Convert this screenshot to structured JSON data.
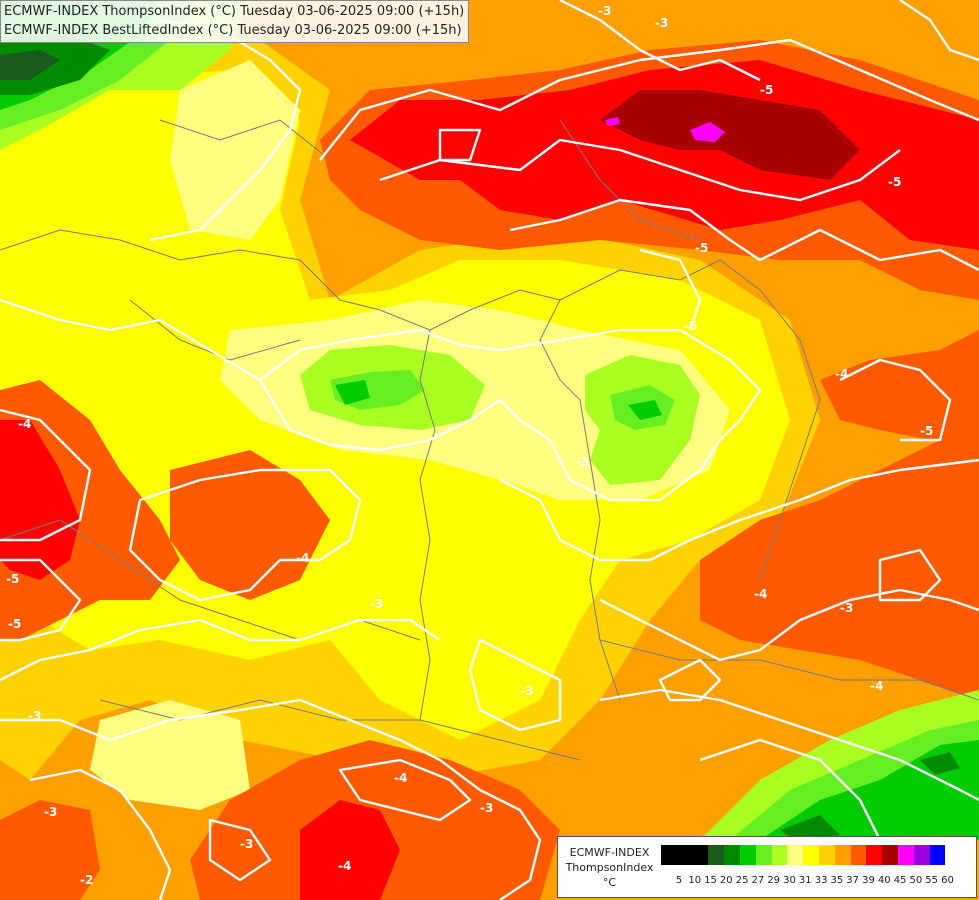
{
  "header": {
    "line1": "ECMWF-INDEX ThompsonIndex (°C) Tuesday 03-06-2025 09:00 (+15h)",
    "line2": "ECMWF-INDEX BestLiftedIndex (°C) Tuesday 03-06-2025 09:00 (+15h)"
  },
  "legend": {
    "model": "ECMWF-INDEX",
    "parameter": "ThompsonIndex",
    "unit": "°C",
    "bins": [
      {
        "label": "5",
        "color": "#000000"
      },
      {
        "label": "10",
        "color": "#000000"
      },
      {
        "label": "15",
        "color": "#000000"
      },
      {
        "label": "20",
        "color": "#1a5a1a"
      },
      {
        "label": "25",
        "color": "#008a00"
      },
      {
        "label": "27",
        "color": "#00cc00"
      },
      {
        "label": "29",
        "color": "#66ee22"
      },
      {
        "label": "30",
        "color": "#aaff22"
      },
      {
        "label": "31",
        "color": "#ffff80"
      },
      {
        "label": "33",
        "color": "#ffff00"
      },
      {
        "label": "35",
        "color": "#ffd200"
      },
      {
        "label": "37",
        "color": "#ff9f00"
      },
      {
        "label": "39",
        "color": "#ff5a00"
      },
      {
        "label": "40",
        "color": "#ff0000"
      },
      {
        "label": "45",
        "color": "#a80000"
      },
      {
        "label": "50",
        "color": "#ff00ff"
      },
      {
        "label": "55",
        "color": "#9900dd"
      },
      {
        "label": "60",
        "color": "#0000ff"
      }
    ]
  },
  "contour_labels": [
    "-3",
    "-5",
    "-5",
    "-5",
    "-5",
    "-4",
    "-5",
    "-3",
    "-3",
    "-4",
    "-5",
    "-5",
    "-4",
    "-3",
    "-4",
    "-3",
    "-4",
    "-3",
    "-3",
    "-4",
    "-3",
    "-4",
    "-3",
    "-3",
    "-2"
  ]
}
